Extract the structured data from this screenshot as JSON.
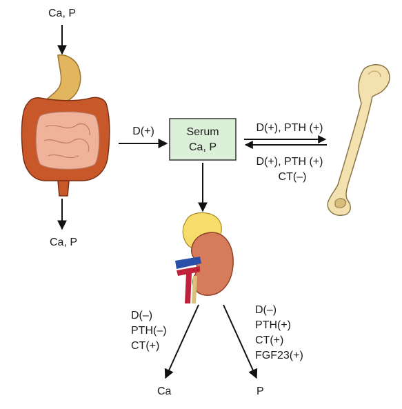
{
  "intake_label": "Ca, P",
  "excretion_label": "Ca, P",
  "gut_to_serum_label": "D(+)",
  "serum_box": {
    "line1": "Serum",
    "line2": "Ca, P",
    "fill": "#dcefd9"
  },
  "serum_to_bone_label": "D(+), PTH (+)",
  "bone_to_serum": {
    "line1": "D(+), PTH (+)",
    "line2": "CT(–)"
  },
  "kidney_calcium": {
    "lines": [
      "D(–)",
      "PTH(–)",
      "CT(+)"
    ],
    "output": "Ca"
  },
  "kidney_phosphate": {
    "lines": [
      "D(–)",
      "PTH(+)",
      "CT(+)",
      "FGF23(+)"
    ],
    "output": "P"
  },
  "colors": {
    "stomach": "#e2b65f",
    "colon": "#c8582a",
    "small_intestine": "#efb39b",
    "bone": "#f3e1b0",
    "kidney": "#d67c5b",
    "adrenal": "#f6dc6a",
    "artery": "#c0203a",
    "vein": "#2a4fa8"
  },
  "icons": [
    "digestive-tract-icon",
    "bone-icon",
    "kidney-icon"
  ]
}
